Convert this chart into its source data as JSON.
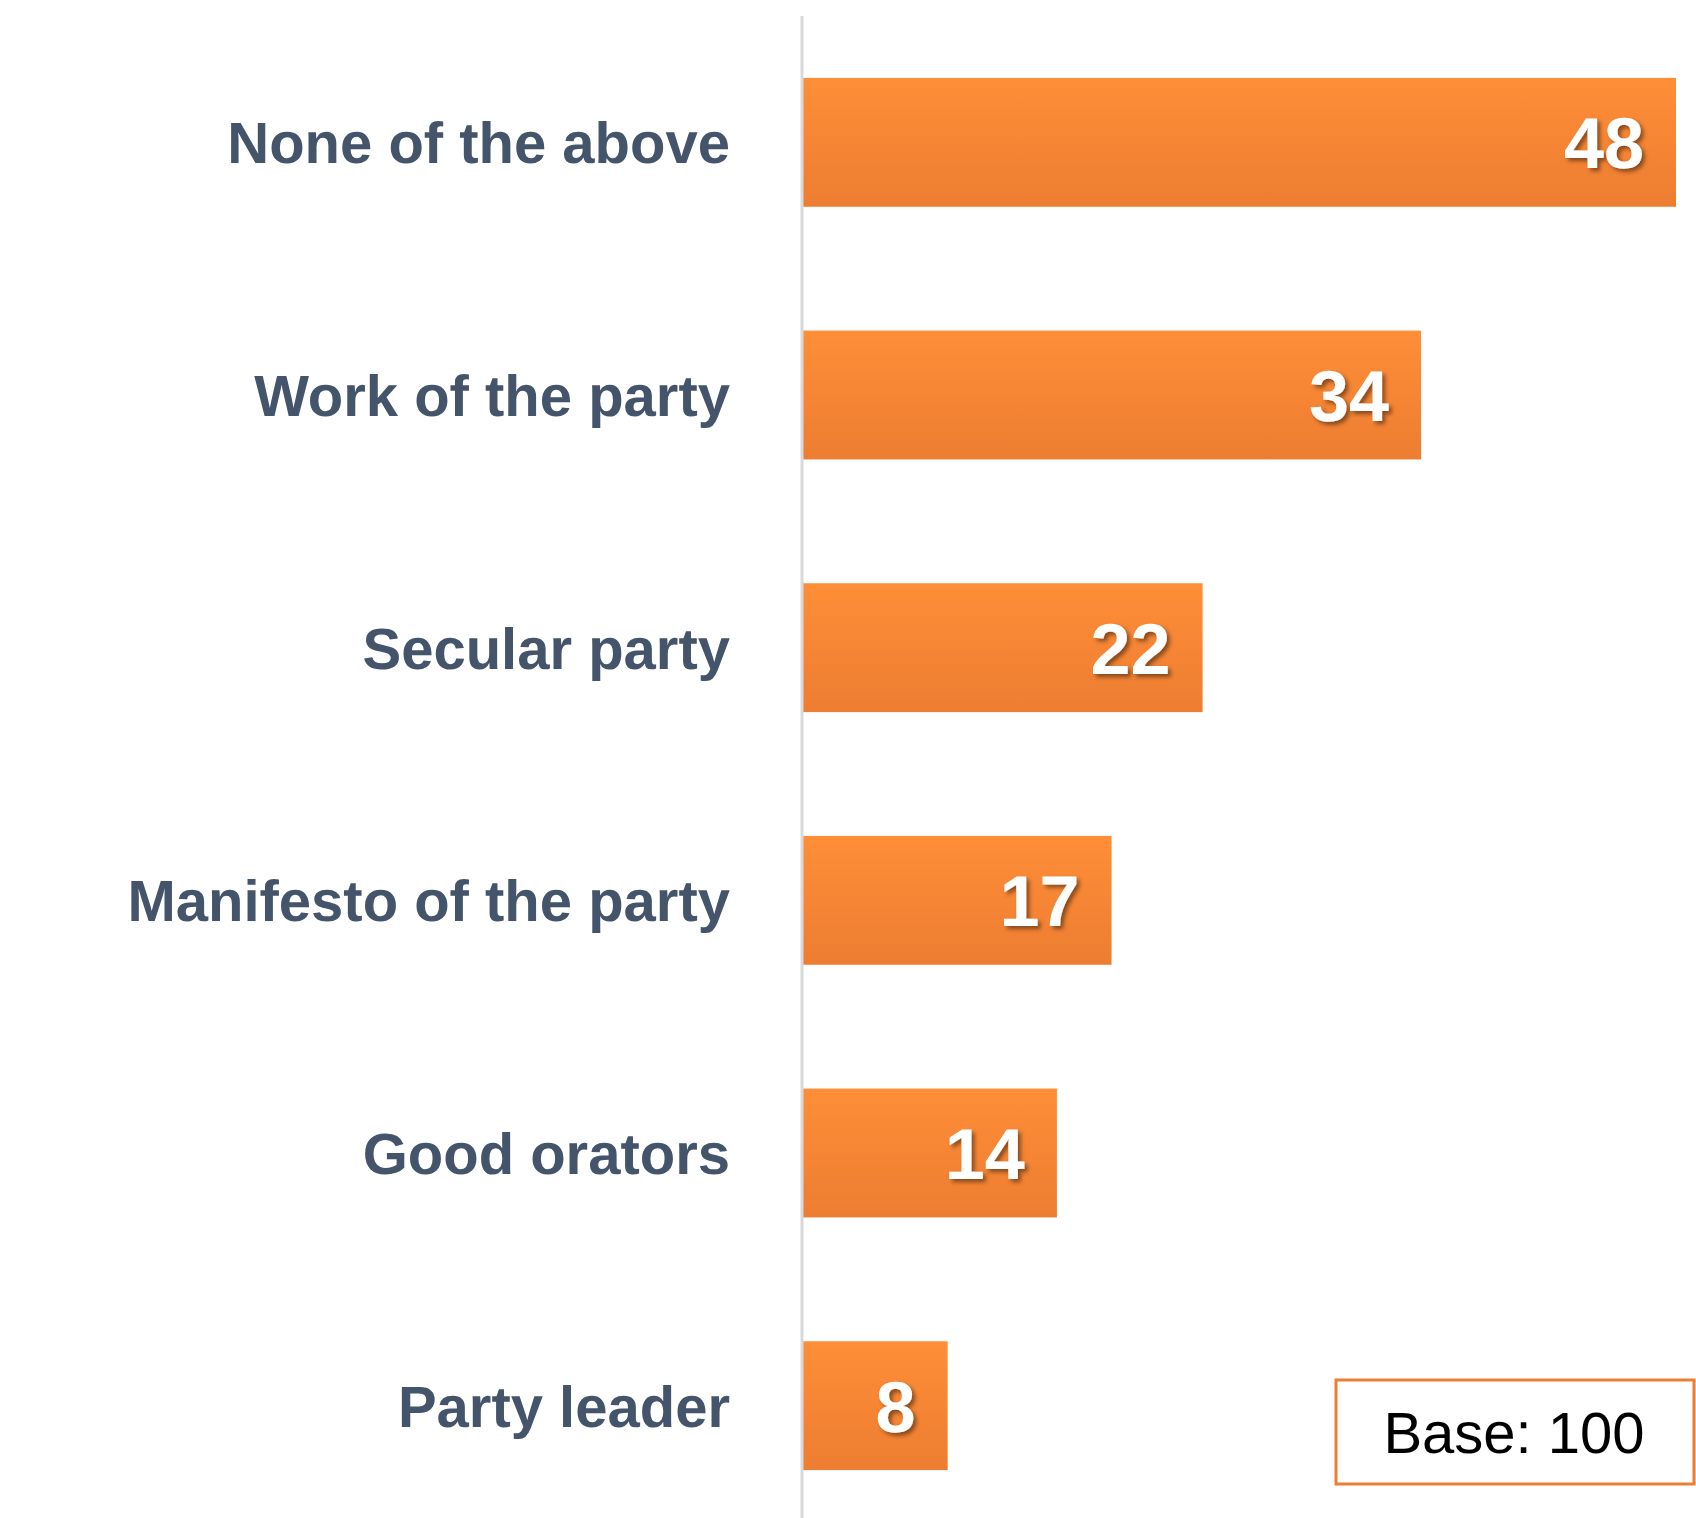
{
  "chart_data": {
    "type": "bar",
    "orientation": "horizontal",
    "categories": [
      "None of the above",
      "Work of the party",
      "Secular party",
      "Manifesto of the party",
      "Good orators",
      "Party leader"
    ],
    "values": [
      48,
      34,
      22,
      17,
      14,
      8
    ],
    "color": "#ed7d31",
    "data_labels": true,
    "annotations": [
      "Base: 100"
    ]
  }
}
